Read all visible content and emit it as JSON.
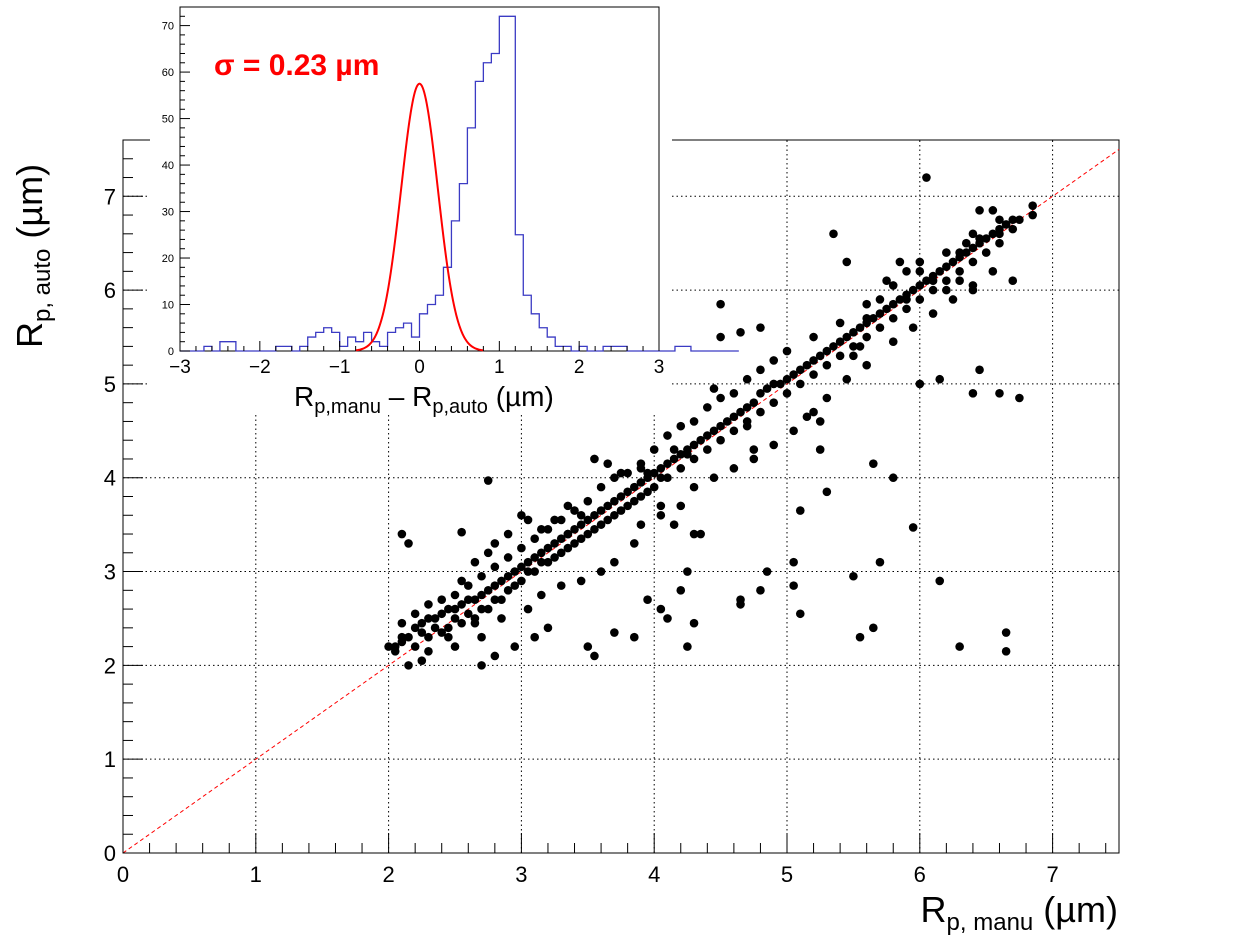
{
  "chart_data": [
    {
      "type": "scatter",
      "xlabel": {
        "main": "R",
        "sub": "p, manu",
        "unit": "(µm)"
      },
      "ylabel": {
        "main": "R",
        "sub": "p, auto",
        "unit": "(µm)"
      },
      "xlim": [
        0,
        7.5
      ],
      "ylim": [
        0,
        7.6
      ],
      "xticks": [
        "0",
        "1",
        "2",
        "3",
        "4",
        "5",
        "6",
        "7"
      ],
      "yticks": [
        "0",
        "1",
        "2",
        "3",
        "4",
        "5",
        "6",
        "7"
      ],
      "grid": true,
      "marker_color": "#000000",
      "reference_line": {
        "x": [
          0,
          7.5
        ],
        "y": [
          0,
          7.5
        ],
        "color": "#ff0000",
        "style": "dashed"
      },
      "points": [
        [
          2.0,
          2.2
        ],
        [
          2.05,
          2.2
        ],
        [
          2.1,
          2.25
        ],
        [
          2.15,
          2.3
        ],
        [
          2.2,
          2.4
        ],
        [
          2.25,
          2.45
        ],
        [
          2.3,
          2.5
        ],
        [
          2.35,
          2.5
        ],
        [
          2.4,
          2.55
        ],
        [
          2.45,
          2.6
        ],
        [
          2.5,
          2.6
        ],
        [
          2.55,
          2.65
        ],
        [
          2.6,
          2.7
        ],
        [
          2.65,
          2.7
        ],
        [
          2.7,
          2.75
        ],
        [
          2.75,
          2.8
        ],
        [
          2.8,
          2.85
        ],
        [
          2.85,
          2.9
        ],
        [
          2.9,
          2.95
        ],
        [
          2.95,
          3.0
        ],
        [
          3.0,
          3.05
        ],
        [
          3.05,
          3.1
        ],
        [
          3.1,
          3.15
        ],
        [
          3.15,
          3.2
        ],
        [
          3.2,
          3.25
        ],
        [
          3.25,
          3.3
        ],
        [
          3.3,
          3.35
        ],
        [
          3.35,
          3.4
        ],
        [
          3.4,
          3.45
        ],
        [
          3.45,
          3.5
        ],
        [
          3.5,
          3.55
        ],
        [
          3.55,
          3.6
        ],
        [
          3.6,
          3.65
        ],
        [
          3.65,
          3.7
        ],
        [
          3.7,
          3.75
        ],
        [
          3.75,
          3.8
        ],
        [
          3.8,
          3.85
        ],
        [
          3.85,
          3.9
        ],
        [
          3.9,
          3.95
        ],
        [
          3.95,
          4.0
        ],
        [
          4.0,
          4.05
        ],
        [
          4.05,
          4.1
        ],
        [
          4.1,
          4.15
        ],
        [
          4.15,
          4.2
        ],
        [
          4.2,
          4.25
        ],
        [
          4.25,
          4.3
        ],
        [
          4.3,
          4.35
        ],
        [
          4.35,
          4.4
        ],
        [
          4.4,
          4.45
        ],
        [
          4.45,
          4.5
        ],
        [
          4.5,
          4.55
        ],
        [
          4.55,
          4.6
        ],
        [
          4.6,
          4.65
        ],
        [
          4.65,
          4.7
        ],
        [
          4.7,
          4.75
        ],
        [
          4.75,
          4.8
        ],
        [
          4.8,
          4.9
        ],
        [
          4.85,
          4.95
        ],
        [
          4.9,
          5.0
        ],
        [
          4.95,
          5.0
        ],
        [
          5.0,
          5.05
        ],
        [
          5.05,
          5.1
        ],
        [
          5.1,
          5.15
        ],
        [
          5.15,
          5.2
        ],
        [
          5.2,
          5.25
        ],
        [
          5.25,
          5.3
        ],
        [
          5.3,
          5.35
        ],
        [
          5.35,
          5.4
        ],
        [
          5.4,
          5.45
        ],
        [
          5.45,
          5.5
        ],
        [
          5.5,
          5.55
        ],
        [
          5.55,
          5.6
        ],
        [
          5.6,
          5.65
        ],
        [
          5.65,
          5.7
        ],
        [
          5.7,
          5.75
        ],
        [
          5.75,
          5.8
        ],
        [
          5.8,
          5.85
        ],
        [
          5.85,
          5.9
        ],
        [
          5.9,
          5.95
        ],
        [
          5.95,
          6.0
        ],
        [
          6.0,
          6.05
        ],
        [
          6.05,
          6.1
        ],
        [
          6.1,
          6.15
        ],
        [
          6.15,
          6.2
        ],
        [
          6.2,
          6.25
        ],
        [
          6.25,
          6.3
        ],
        [
          6.3,
          6.35
        ],
        [
          6.35,
          6.4
        ],
        [
          6.4,
          6.45
        ],
        [
          6.45,
          6.5
        ],
        [
          6.5,
          6.55
        ],
        [
          6.55,
          6.6
        ],
        [
          6.6,
          6.65
        ],
        [
          6.65,
          6.7
        ],
        [
          6.7,
          6.75
        ],
        [
          6.85,
          6.9
        ],
        [
          6.85,
          6.8
        ],
        [
          2.05,
          2.15
        ],
        [
          2.1,
          2.3
        ],
        [
          2.2,
          2.2
        ],
        [
          2.25,
          2.35
        ],
        [
          2.3,
          2.3
        ],
        [
          2.35,
          2.4
        ],
        [
          2.4,
          2.35
        ],
        [
          2.45,
          2.4
        ],
        [
          2.5,
          2.5
        ],
        [
          2.55,
          2.45
        ],
        [
          2.6,
          2.55
        ],
        [
          2.65,
          2.5
        ],
        [
          2.7,
          2.6
        ],
        [
          2.75,
          2.6
        ],
        [
          2.8,
          2.7
        ],
        [
          2.85,
          2.7
        ],
        [
          2.9,
          2.8
        ],
        [
          2.95,
          2.85
        ],
        [
          3.0,
          2.9
        ],
        [
          3.05,
          3.0
        ],
        [
          3.1,
          3.0
        ],
        [
          3.15,
          3.1
        ],
        [
          3.2,
          3.1
        ],
        [
          3.25,
          3.15
        ],
        [
          3.3,
          3.2
        ],
        [
          3.35,
          3.25
        ],
        [
          3.4,
          3.3
        ],
        [
          3.45,
          3.35
        ],
        [
          3.5,
          3.4
        ],
        [
          3.55,
          3.45
        ],
        [
          3.6,
          3.5
        ],
        [
          3.65,
          3.55
        ],
        [
          3.7,
          3.6
        ],
        [
          3.75,
          3.65
        ],
        [
          3.8,
          3.7
        ],
        [
          3.85,
          3.75
        ],
        [
          3.9,
          3.8
        ],
        [
          3.95,
          3.85
        ],
        [
          4.0,
          3.9
        ],
        [
          4.1,
          4.0
        ],
        [
          4.2,
          4.1
        ],
        [
          4.3,
          4.2
        ],
        [
          4.4,
          4.3
        ],
        [
          4.5,
          4.4
        ],
        [
          4.6,
          4.5
        ],
        [
          4.7,
          4.6
        ],
        [
          4.8,
          4.7
        ],
        [
          4.9,
          4.8
        ],
        [
          5.0,
          4.9
        ],
        [
          5.1,
          5.0
        ],
        [
          5.2,
          5.1
        ],
        [
          5.3,
          5.2
        ],
        [
          5.4,
          5.3
        ],
        [
          5.5,
          5.4
        ],
        [
          5.6,
          5.5
        ],
        [
          5.7,
          5.6
        ],
        [
          5.8,
          5.7
        ],
        [
          5.9,
          5.8
        ],
        [
          6.0,
          5.9
        ],
        [
          6.1,
          6.0
        ],
        [
          6.2,
          6.1
        ],
        [
          6.3,
          6.2
        ],
        [
          6.4,
          6.3
        ],
        [
          6.5,
          6.4
        ],
        [
          6.6,
          6.5
        ],
        [
          2.1,
          2.45
        ],
        [
          2.2,
          2.55
        ],
        [
          2.3,
          2.65
        ],
        [
          2.4,
          2.7
        ],
        [
          2.5,
          2.75
        ],
        [
          2.6,
          2.85
        ],
        [
          2.7,
          2.95
        ],
        [
          2.8,
          3.05
        ],
        [
          2.9,
          3.15
        ],
        [
          3.0,
          3.25
        ],
        [
          3.1,
          3.35
        ],
        [
          3.2,
          3.45
        ],
        [
          3.3,
          3.55
        ],
        [
          3.4,
          3.65
        ],
        [
          3.5,
          3.75
        ],
        [
          3.6,
          3.9
        ],
        [
          3.7,
          4.0
        ],
        [
          3.8,
          4.05
        ],
        [
          3.9,
          4.15
        ],
        [
          4.0,
          4.3
        ],
        [
          4.1,
          4.45
        ],
        [
          4.2,
          4.55
        ],
        [
          4.3,
          4.6
        ],
        [
          4.4,
          4.75
        ],
        [
          4.5,
          4.85
        ],
        [
          4.6,
          4.9
        ],
        [
          4.7,
          5.05
        ],
        [
          4.8,
          5.15
        ],
        [
          4.9,
          5.25
        ],
        [
          5.0,
          5.35
        ],
        [
          5.2,
          5.5
        ],
        [
          5.4,
          5.65
        ],
        [
          5.6,
          5.85
        ],
        [
          5.8,
          6.05
        ],
        [
          6.0,
          6.2
        ],
        [
          6.2,
          6.4
        ],
        [
          6.4,
          6.6
        ],
        [
          6.6,
          6.75
        ],
        [
          2.65,
          2.45
        ],
        [
          2.7,
          2.3
        ],
        [
          2.85,
          2.5
        ],
        [
          3.05,
          2.6
        ],
        [
          3.15,
          2.75
        ],
        [
          3.3,
          2.85
        ],
        [
          3.45,
          2.9
        ],
        [
          3.6,
          3.0
        ],
        [
          3.7,
          3.1
        ],
        [
          3.85,
          3.3
        ],
        [
          3.9,
          3.5
        ],
        [
          4.05,
          3.6
        ],
        [
          4.2,
          3.7
        ],
        [
          4.3,
          3.9
        ],
        [
          4.45,
          4.0
        ],
        [
          4.6,
          4.1
        ],
        [
          4.75,
          4.2
        ],
        [
          4.9,
          4.35
        ],
        [
          5.05,
          4.5
        ],
        [
          5.15,
          4.65
        ],
        [
          5.3,
          4.85
        ],
        [
          5.45,
          5.05
        ],
        [
          5.6,
          5.2
        ],
        [
          5.8,
          5.45
        ],
        [
          5.95,
          5.6
        ],
        [
          6.1,
          5.75
        ],
        [
          6.25,
          5.9
        ],
        [
          6.4,
          6.05
        ],
        [
          6.55,
          6.2
        ],
        [
          2.1,
          3.4
        ],
        [
          2.15,
          3.3
        ],
        [
          2.55,
          3.42
        ],
        [
          2.75,
          3.97
        ],
        [
          2.5,
          2.2
        ],
        [
          2.3,
          2.15
        ],
        [
          2.25,
          2.05
        ],
        [
          2.15,
          2.0
        ],
        [
          2.45,
          2.3
        ],
        [
          2.7,
          2.0
        ],
        [
          2.8,
          2.1
        ],
        [
          2.95,
          2.2
        ],
        [
          3.1,
          2.3
        ],
        [
          3.2,
          2.4
        ],
        [
          3.5,
          2.2
        ],
        [
          3.55,
          2.1
        ],
        [
          3.7,
          2.35
        ],
        [
          3.85,
          2.3
        ],
        [
          3.95,
          2.7
        ],
        [
          4.05,
          2.6
        ],
        [
          4.1,
          2.5
        ],
        [
          4.25,
          2.2
        ],
        [
          4.3,
          2.45
        ],
        [
          4.2,
          2.8
        ],
        [
          4.25,
          3.0
        ],
        [
          4.05,
          3.7
        ],
        [
          4.15,
          3.5
        ],
        [
          4.3,
          3.4
        ],
        [
          4.35,
          3.4
        ],
        [
          4.45,
          4.95
        ],
        [
          4.5,
          5.5
        ],
        [
          4.5,
          5.85
        ],
        [
          4.65,
          2.7
        ],
        [
          4.65,
          2.65
        ],
        [
          4.8,
          2.8
        ],
        [
          4.85,
          3.0
        ],
        [
          5.05,
          2.85
        ],
        [
          5.05,
          3.1
        ],
        [
          5.1,
          3.65
        ],
        [
          5.1,
          2.55
        ],
        [
          4.65,
          5.55
        ],
        [
          4.8,
          5.6
        ],
        [
          4.75,
          4.3
        ],
        [
          4.7,
          4.55
        ],
        [
          5.2,
          4.7
        ],
        [
          5.25,
          4.6
        ],
        [
          5.25,
          4.3
        ],
        [
          5.3,
          3.85
        ],
        [
          5.35,
          6.6
        ],
        [
          5.45,
          6.3
        ],
        [
          5.5,
          2.95
        ],
        [
          5.55,
          2.3
        ],
        [
          5.65,
          2.4
        ],
        [
          5.65,
          4.15
        ],
        [
          5.7,
          3.1
        ],
        [
          5.8,
          4.0
        ],
        [
          5.85,
          6.3
        ],
        [
          5.95,
          3.47
        ],
        [
          6.0,
          5.0
        ],
        [
          6.05,
          7.2
        ],
        [
          6.1,
          6.1
        ],
        [
          6.15,
          5.05
        ],
        [
          6.15,
          2.9
        ],
        [
          6.3,
          2.2
        ],
        [
          6.4,
          4.9
        ],
        [
          6.45,
          5.15
        ],
        [
          6.6,
          4.9
        ],
        [
          6.65,
          2.35
        ],
        [
          6.65,
          2.15
        ],
        [
          6.75,
          4.85
        ],
        [
          6.7,
          6.1
        ],
        [
          5.9,
          5.9
        ],
        [
          6.3,
          6.4
        ],
        [
          6.35,
          6.5
        ],
        [
          6.45,
          6.55
        ],
        [
          6.45,
          6.85
        ],
        [
          6.55,
          6.85
        ],
        [
          6.6,
          6.6
        ],
        [
          6.7,
          6.65
        ],
        [
          6.75,
          6.75
        ],
        [
          5.5,
          5.3
        ],
        [
          5.55,
          5.4
        ],
        [
          5.6,
          5.7
        ],
        [
          5.7,
          5.9
        ],
        [
          5.75,
          6.1
        ],
        [
          5.9,
          6.2
        ],
        [
          6.0,
          6.3
        ],
        [
          6.2,
          6.0
        ],
        [
          6.3,
          6.1
        ],
        [
          6.4,
          6.0
        ],
        [
          3.35,
          3.7
        ],
        [
          3.45,
          3.6
        ],
        [
          3.55,
          4.2
        ],
        [
          3.65,
          4.15
        ],
        [
          3.75,
          4.05
        ],
        [
          3.9,
          4.1
        ],
        [
          3.95,
          4.05
        ],
        [
          4.05,
          4.0
        ],
        [
          4.15,
          4.3
        ],
        [
          4.25,
          4.25
        ],
        [
          3.0,
          3.6
        ],
        [
          3.05,
          3.55
        ],
        [
          3.15,
          3.45
        ],
        [
          3.25,
          3.55
        ],
        [
          3.35,
          3.4
        ],
        [
          2.9,
          3.4
        ],
        [
          2.8,
          3.3
        ],
        [
          2.75,
          3.2
        ],
        [
          2.65,
          3.1
        ],
        [
          2.55,
          2.9
        ]
      ]
    },
    {
      "type": "histogram",
      "annotation": "σ = 0.23 µm",
      "annotation_color": "#ff0000",
      "xlabel": {
        "main1": "R",
        "sub1": "p,manu",
        "dash": " – ",
        "main2": "R",
        "sub2": "p,auto",
        "unit": " (µm)"
      },
      "xlim": [
        -3,
        3
      ],
      "ylim": [
        0,
        74
      ],
      "xticks": [
        "−3",
        "−2",
        "−1",
        "0",
        "1",
        "2",
        "3"
      ],
      "yticks": [
        "0",
        "10",
        "20",
        "30",
        "40",
        "50",
        "60",
        "70"
      ],
      "bin_width": 0.1,
      "bin_start": -3,
      "hist_color": "#3b3bc4",
      "fit_color": "#ff0000",
      "fit": {
        "type": "gaussian",
        "amplitude": 57.5,
        "mean": 0.0,
        "sigma": 0.23
      },
      "counts": [
        0,
        0,
        0,
        1,
        0,
        2,
        2,
        0,
        0,
        0,
        0,
        0,
        1,
        1,
        0,
        1,
        3,
        4,
        5,
        4,
        1,
        3,
        2,
        4,
        2,
        1,
        4,
        5,
        6,
        3,
        8,
        10,
        12,
        18,
        28,
        36,
        48,
        58,
        62,
        64,
        72,
        72,
        25,
        12,
        8,
        5,
        3,
        1,
        1,
        0,
        1,
        0,
        0,
        1,
        1,
        1,
        0,
        0,
        0,
        0,
        0,
        0,
        1,
        1,
        0,
        0,
        0,
        0,
        0,
        0
      ]
    }
  ]
}
